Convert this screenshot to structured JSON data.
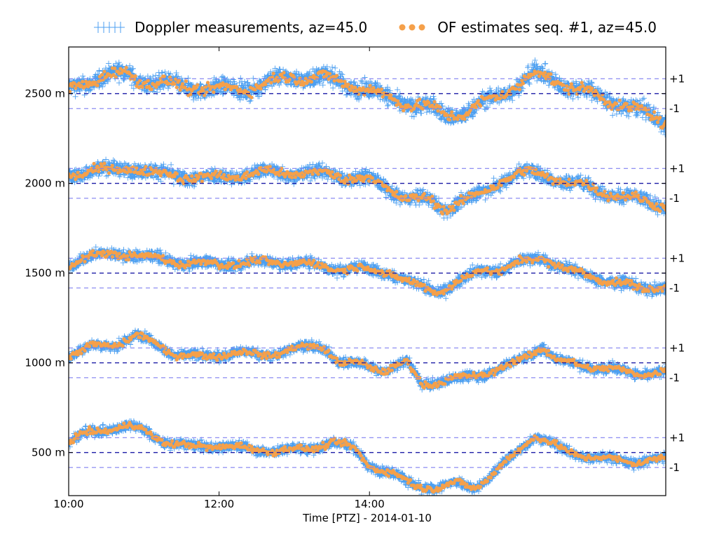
{
  "chart_data": {
    "type": "scatter",
    "title": "",
    "xlabel": "Time [PTZ] - 2014-01-10",
    "ylabel": "",
    "x_range_hours": [
      10.0,
      17.94
    ],
    "x_ticks": [
      {
        "value": 10,
        "label": "10:00"
      },
      {
        "value": 12,
        "label": "12:00"
      },
      {
        "value": 14,
        "label": "14:00"
      }
    ],
    "y_range": [
      260,
      2760
    ],
    "y_ticks": [
      {
        "value": 500,
        "label": "500 m"
      },
      {
        "value": 1000,
        "label": "1000 m"
      },
      {
        "value": 1500,
        "label": "1500 m"
      },
      {
        "value": 2000,
        "label": "2000 m"
      },
      {
        "value": 2500,
        "label": "2500 m"
      }
    ],
    "reference_band_offset": 83,
    "right_band_labels": {
      "upper": "+1",
      "lower": "-1"
    },
    "legend": {
      "placement": "top",
      "items": [
        {
          "name": "Doppler measurements, az=45.0",
          "marker": "plus",
          "color": "#4c9ff0"
        },
        {
          "name": "OF estimates seq. #1, az=45.0",
          "marker": "dot",
          "color": "#f5a04a"
        }
      ]
    },
    "colors": {
      "doppler": "#4c9ff0",
      "of_estimates": "#f5a04a",
      "center_line": "#1a1aa6",
      "band_line": "#8080f0"
    },
    "series": [
      {
        "name": "range 2500 m",
        "center": 2500,
        "trend_x": [
          10.0,
          10.2,
          10.5,
          10.8,
          11.0,
          11.5,
          12.0,
          12.5,
          13.0,
          13.5,
          14.0,
          14.2,
          14.5,
          14.8,
          15.0,
          15.3,
          15.6,
          16.0,
          16.2,
          16.5,
          16.8,
          17.0,
          17.3,
          17.6,
          17.94
        ],
        "trend_y": [
          2520,
          2560,
          2600,
          2610,
          2570,
          2540,
          2520,
          2540,
          2600,
          2580,
          2520,
          2480,
          2450,
          2420,
          2380,
          2400,
          2460,
          2560,
          2610,
          2570,
          2520,
          2490,
          2450,
          2400,
          2340
        ],
        "spread": 60
      },
      {
        "name": "range 2000 m",
        "center": 2000,
        "trend_x": [
          10.0,
          10.3,
          10.6,
          10.9,
          11.2,
          11.5,
          12.0,
          12.5,
          13.0,
          13.5,
          14.0,
          14.3,
          14.5,
          14.8,
          15.0,
          15.2,
          15.5,
          15.8,
          16.0,
          16.3,
          16.6,
          17.0,
          17.4,
          17.94
        ],
        "trend_y": [
          2040,
          2080,
          2070,
          2090,
          2050,
          2040,
          2030,
          2060,
          2060,
          2050,
          2020,
          1960,
          1920,
          1900,
          1860,
          1900,
          1940,
          2030,
          2060,
          2050,
          2010,
          1970,
          1920,
          1880
        ],
        "spread": 50
      },
      {
        "name": "range 1500 m",
        "center": 1500,
        "trend_x": [
          10.0,
          10.2,
          10.5,
          10.8,
          11.0,
          11.5,
          12.0,
          12.5,
          13.0,
          13.5,
          14.0,
          14.3,
          14.6,
          14.9,
          15.2,
          15.5,
          15.8,
          16.0,
          16.3,
          16.6,
          17.0,
          17.3,
          17.6,
          17.94
        ],
        "trend_y": [
          1540,
          1590,
          1600,
          1610,
          1590,
          1560,
          1550,
          1560,
          1560,
          1530,
          1520,
          1500,
          1430,
          1400,
          1450,
          1520,
          1520,
          1560,
          1590,
          1520,
          1480,
          1440,
          1420,
          1420
        ],
        "spread": 40
      },
      {
        "name": "range 1000 m",
        "center": 1000,
        "trend_x": [
          10.0,
          10.3,
          10.6,
          10.9,
          11.1,
          11.4,
          11.8,
          12.2,
          12.6,
          13.0,
          13.4,
          13.6,
          13.9,
          14.2,
          14.5,
          14.7,
          15.0,
          15.3,
          15.6,
          15.9,
          16.1,
          16.3,
          16.5,
          16.8,
          17.1,
          17.4,
          17.7,
          17.94
        ],
        "trend_y": [
          1040,
          1090,
          1100,
          1150,
          1120,
          1050,
          1030,
          1060,
          1040,
          1080,
          1090,
          1000,
          990,
          960,
          1000,
          880,
          900,
          920,
          950,
          990,
          1040,
          1090,
          1010,
          990,
          970,
          950,
          940,
          950
        ],
        "spread": 35
      },
      {
        "name": "range 500 m",
        "center": 500,
        "trend_x": [
          10.0,
          10.2,
          10.5,
          10.8,
          11.0,
          11.3,
          11.6,
          12.0,
          12.4,
          12.8,
          13.2,
          13.5,
          13.8,
          14.0,
          14.3,
          14.6,
          14.9,
          15.2,
          15.4,
          15.6,
          15.9,
          16.2,
          16.4,
          16.6,
          16.9,
          17.2,
          17.5,
          17.94
        ],
        "trend_y": [
          560,
          600,
          630,
          650,
          620,
          560,
          530,
          540,
          520,
          510,
          520,
          560,
          520,
          430,
          380,
          320,
          300,
          330,
          310,
          360,
          480,
          600,
          550,
          510,
          480,
          460,
          450,
          460
        ],
        "spread": 35
      }
    ]
  }
}
